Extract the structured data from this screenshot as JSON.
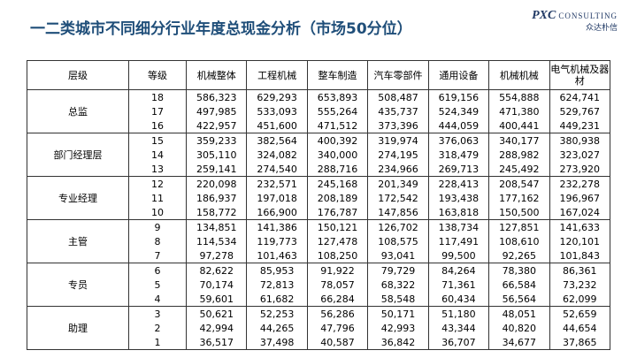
{
  "header": {
    "title": "一二类城市不同细分行业年度总现金分析（市场50分位）",
    "logo": "PXC",
    "logo_sub": "CONSULTING",
    "logo_cn": "众达朴信"
  },
  "table": {
    "columns": [
      "层级",
      "等级",
      "机械整体",
      "工程机械",
      "整车制造",
      "汽车零部件",
      "通用设备",
      "机械机械",
      "电气机械及器材"
    ],
    "groups": [
      {
        "name": "总监",
        "rows": [
          [
            "18",
            "586,323",
            "629,293",
            "653,893",
            "508,487",
            "619,156",
            "554,888",
            "624,741"
          ],
          [
            "17",
            "497,985",
            "533,093",
            "555,264",
            "435,737",
            "524,349",
            "471,380",
            "529,767"
          ],
          [
            "16",
            "422,957",
            "451,600",
            "471,512",
            "373,396",
            "444,059",
            "400,441",
            "449,231"
          ]
        ]
      },
      {
        "name": "部门经理层",
        "rows": [
          [
            "15",
            "359,233",
            "382,564",
            "400,392",
            "319,974",
            "376,063",
            "340,177",
            "380,938"
          ],
          [
            "14",
            "305,110",
            "324,082",
            "340,000",
            "274,195",
            "318,479",
            "288,982",
            "323,027"
          ],
          [
            "13",
            "259,141",
            "274,540",
            "288,716",
            "234,966",
            "269,713",
            "245,492",
            "273,920"
          ]
        ]
      },
      {
        "name": "专业经理",
        "rows": [
          [
            "12",
            "220,098",
            "232,571",
            "245,168",
            "201,349",
            "228,413",
            "208,547",
            "232,278"
          ],
          [
            "11",
            "186,937",
            "197,018",
            "208,189",
            "172,542",
            "193,438",
            "177,162",
            "196,967"
          ],
          [
            "10",
            "158,772",
            "166,900",
            "176,787",
            "147,856",
            "163,818",
            "150,500",
            "167,024"
          ]
        ]
      },
      {
        "name": "主管",
        "rows": [
          [
            "9",
            "134,851",
            "141,386",
            "150,121",
            "126,702",
            "138,734",
            "127,851",
            "141,633"
          ],
          [
            "8",
            "114,534",
            "119,773",
            "127,478",
            "108,575",
            "117,491",
            "108,610",
            "120,101"
          ],
          [
            "7",
            "97,278",
            "101,463",
            "108,250",
            "93,041",
            "99,500",
            "92,265",
            "101,843"
          ]
        ]
      },
      {
        "name": "专员",
        "rows": [
          [
            "6",
            "82,622",
            "85,953",
            "91,922",
            "79,729",
            "84,264",
            "78,380",
            "86,361"
          ],
          [
            "5",
            "70,174",
            "72,813",
            "78,057",
            "68,322",
            "71,361",
            "66,584",
            "73,232"
          ],
          [
            "4",
            "59,601",
            "61,682",
            "66,284",
            "58,548",
            "60,434",
            "56,564",
            "62,099"
          ]
        ]
      },
      {
        "name": "助理",
        "rows": [
          [
            "3",
            "50,621",
            "52,253",
            "56,286",
            "50,171",
            "51,180",
            "48,051",
            "52,659"
          ],
          [
            "2",
            "42,994",
            "44,265",
            "47,796",
            "42,993",
            "43,344",
            "40,820",
            "44,654"
          ],
          [
            "1",
            "36,517",
            "37,498",
            "40,587",
            "36,842",
            "36,707",
            "34,677",
            "37,865"
          ]
        ]
      }
    ]
  }
}
